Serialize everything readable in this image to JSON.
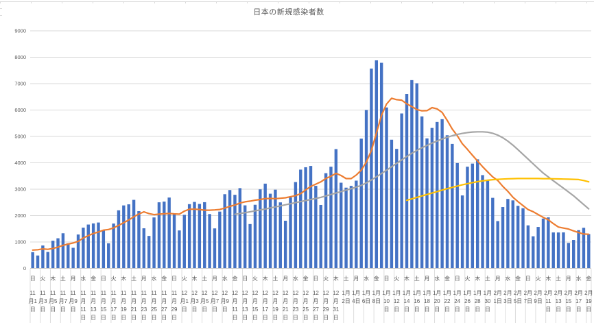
{
  "colors": {
    "bar": "#4472C4",
    "avg_line": "#ED7D31",
    "gray_line": "#A5A5A5",
    "yellow_line": "#FFC000",
    "grid": "#D9D9D9",
    "axis": "#C9C9C9",
    "separator": "#DCDCDC",
    "text": "#595959"
  },
  "chart_data": {
    "type": "bar",
    "title": "日本の新規感染者数",
    "xlabel": "",
    "ylabel": "",
    "ylim": [
      0,
      9000
    ],
    "yticks": [
      0,
      1000,
      2000,
      3000,
      4000,
      5000,
      6000,
      7000,
      8000,
      9000
    ],
    "grid": true,
    "legend": "none",
    "n_categories": 111,
    "x_label_interval": 2,
    "x_tick_labels": [
      {
        "w": "日",
        "lines": [
          "11",
          "月1",
          "日"
        ]
      },
      {
        "w": "火",
        "lines": [
          "11",
          "月3",
          "日"
        ]
      },
      {
        "w": "木",
        "lines": [
          "11",
          "月5",
          "日"
        ]
      },
      {
        "w": "土",
        "lines": [
          "11",
          "月7",
          "日"
        ]
      },
      {
        "w": "月",
        "lines": [
          "11",
          "月9",
          "日"
        ]
      },
      {
        "w": "水",
        "lines": [
          "11",
          "月",
          "11",
          "日"
        ]
      },
      {
        "w": "金",
        "lines": [
          "11",
          "月",
          "13",
          "日"
        ]
      },
      {
        "w": "日",
        "lines": [
          "11",
          "月",
          "15",
          "日"
        ]
      },
      {
        "w": "火",
        "lines": [
          "11",
          "月",
          "17",
          "日"
        ]
      },
      {
        "w": "木",
        "lines": [
          "11",
          "月",
          "19",
          "日"
        ]
      },
      {
        "w": "土",
        "lines": [
          "11",
          "月",
          "21",
          "日"
        ]
      },
      {
        "w": "月",
        "lines": [
          "11",
          "月",
          "23",
          "日"
        ]
      },
      {
        "w": "水",
        "lines": [
          "11",
          "月",
          "25",
          "日"
        ]
      },
      {
        "w": "金",
        "lines": [
          "11",
          "月",
          "27",
          "日"
        ]
      },
      {
        "w": "日",
        "lines": [
          "11",
          "月",
          "29",
          "日"
        ]
      },
      {
        "w": "火",
        "lines": [
          "12",
          "月1",
          "日"
        ]
      },
      {
        "w": "木",
        "lines": [
          "12",
          "月3",
          "日"
        ]
      },
      {
        "w": "土",
        "lines": [
          "12",
          "月5",
          "日"
        ]
      },
      {
        "w": "月",
        "lines": [
          "12",
          "月7",
          "日"
        ]
      },
      {
        "w": "水",
        "lines": [
          "12",
          "月9",
          "日"
        ]
      },
      {
        "w": "金",
        "lines": [
          "12",
          "月",
          "11",
          "日"
        ]
      },
      {
        "w": "日",
        "lines": [
          "12",
          "月",
          "13",
          "日"
        ]
      },
      {
        "w": "火",
        "lines": [
          "12",
          "月",
          "15",
          "日"
        ]
      },
      {
        "w": "木",
        "lines": [
          "12",
          "月",
          "17",
          "日"
        ]
      },
      {
        "w": "土",
        "lines": [
          "12",
          "月",
          "19",
          "日"
        ]
      },
      {
        "w": "月",
        "lines": [
          "12",
          "月",
          "21",
          "日"
        ]
      },
      {
        "w": "水",
        "lines": [
          "12",
          "月",
          "23",
          "日"
        ]
      },
      {
        "w": "金",
        "lines": [
          "12",
          "月",
          "25",
          "日"
        ]
      },
      {
        "w": "日",
        "lines": [
          "12",
          "月",
          "27",
          "日"
        ]
      },
      {
        "w": "火",
        "lines": [
          "12",
          "月",
          "29",
          "日"
        ]
      },
      {
        "w": "木",
        "lines": [
          "12",
          "月",
          "31",
          "日"
        ]
      },
      {
        "w": "土",
        "lines": [
          "1月",
          "2日"
        ]
      },
      {
        "w": "月",
        "lines": [
          "1月",
          "4日"
        ]
      },
      {
        "w": "水",
        "lines": [
          "1月",
          "6日"
        ]
      },
      {
        "w": "金",
        "lines": [
          "1月",
          "8日"
        ]
      },
      {
        "w": "日",
        "lines": [
          "1月",
          "10",
          "日"
        ]
      },
      {
        "w": "火",
        "lines": [
          "1月",
          "12",
          "日"
        ]
      },
      {
        "w": "木",
        "lines": [
          "1月",
          "14",
          "日"
        ]
      },
      {
        "w": "土",
        "lines": [
          "1月",
          "16",
          "日"
        ]
      },
      {
        "w": "月",
        "lines": [
          "1月",
          "18",
          "日"
        ]
      },
      {
        "w": "水",
        "lines": [
          "1月",
          "20",
          "日"
        ]
      },
      {
        "w": "金",
        "lines": [
          "1月",
          "22",
          "日"
        ]
      },
      {
        "w": "日",
        "lines": [
          "1月",
          "24",
          "日"
        ]
      },
      {
        "w": "火",
        "lines": [
          "1月",
          "26",
          "日"
        ]
      },
      {
        "w": "木",
        "lines": [
          "1月",
          "28",
          "日"
        ]
      },
      {
        "w": "土",
        "lines": [
          "1月",
          "30",
          "日"
        ]
      },
      {
        "w": "月",
        "lines": [
          "2月",
          "1日"
        ]
      },
      {
        "w": "水",
        "lines": [
          "2月",
          "3日"
        ]
      },
      {
        "w": "金",
        "lines": [
          "2月",
          "5日"
        ]
      },
      {
        "w": "日",
        "lines": [
          "2月",
          "7日"
        ]
      },
      {
        "w": "火",
        "lines": [
          "2月",
          "9日"
        ]
      },
      {
        "w": "木",
        "lines": [
          "2月",
          "11",
          "日"
        ]
      },
      {
        "w": "土",
        "lines": [
          "2月",
          "13",
          "日"
        ]
      },
      {
        "w": "月",
        "lines": [
          "2月",
          "15",
          "日"
        ]
      },
      {
        "w": "水",
        "lines": [
          "2月",
          "17",
          "日"
        ]
      },
      {
        "w": "金",
        "lines": [
          "2月",
          "19",
          "日"
        ]
      }
    ],
    "series": [
      {
        "name": "daily_new_cases",
        "type": "bar",
        "color": "#4472C4",
        "start_index": 0,
        "values": [
          614,
          488,
          867,
          623,
          1048,
          1141,
          1331,
          951,
          780,
          1284,
          1543,
          1661,
          1704,
          1738,
          1441,
          950,
          1699,
          2201,
          2386,
          2427,
          2596,
          2168,
          1520,
          1230,
          1930,
          2504,
          2531,
          2684,
          2066,
          1438,
          2030,
          2434,
          2518,
          2442,
          2508,
          2058,
          1515,
          2152,
          2811,
          2968,
          2788,
          3041,
          2388,
          1680,
          2410,
          2994,
          3211,
          2829,
          2982,
          2501,
          1806,
          2688,
          3271,
          3742,
          3832,
          3881,
          3127,
          2403,
          3607,
          3852,
          4520,
          3246,
          3059,
          3127,
          3325,
          4915,
          6001,
          7570,
          7882,
          7790,
          6097,
          4876,
          4527,
          5870,
          6610,
          7133,
          7014,
          5759,
          4925,
          5321,
          5549,
          5653,
          5045,
          4717,
          3990,
          2764,
          3853,
          3971,
          4133,
          3534,
          3344,
          2673,
          1792,
          2324,
          2631,
          2576,
          2372,
          2279,
          1630,
          1216,
          1570,
          1887,
          1933,
          1362,
          1361,
          1364,
          965,
          1077,
          1448,
          1538,
          1301
        ]
      },
      {
        "name": "seven_day_moving_average",
        "type": "line",
        "color": "#ED7D31",
        "start_index": 0,
        "values": [
          694,
          706,
          738,
          722,
          756,
          808,
          873,
          921,
          963,
          1023,
          1154,
          1242,
          1322,
          1380,
          1450,
          1474,
          1534,
          1628,
          1731,
          1835,
          1957,
          2061,
          2142,
          2075,
          2037,
          2054,
          2068,
          2081,
          2066,
          2055,
          2169,
          2241,
          2243,
          2230,
          2205,
          2204,
          2215,
          2232,
          2286,
          2351,
          2400,
          2476,
          2523,
          2547,
          2584,
          2610,
          2645,
          2650,
          2642,
          2658,
          2676,
          2716,
          2755,
          2831,
          2975,
          3103,
          3192,
          3278,
          3409,
          3492,
          3603,
          3519,
          3402,
          3402,
          3534,
          3721,
          4028,
          4463,
          5126,
          5801,
          6226,
          6447,
          6392,
          6373,
          6236,
          6129,
          6018,
          5970,
          5977,
          6090,
          6044,
          5908,
          5609,
          5281,
          5029,
          4720,
          4510,
          4285,
          4068,
          3852,
          3656,
          3467,
          3329,
          3110,
          2919,
          2696,
          2530,
          2378,
          2229,
          2147,
          2039,
          1933,
          1841,
          1697,
          1566,
          1528,
          1492,
          1421,
          1359,
          1302,
          1293
        ]
      },
      {
        "name": "gray_trend_line",
        "type": "line",
        "color": "#A5A5A5",
        "start_index": 40,
        "values": [
          2050,
          2080,
          2110,
          2145,
          2180,
          2215,
          2250,
          2290,
          2330,
          2370,
          2410,
          2450,
          2490,
          2530,
          2570,
          2610,
          2650,
          2690,
          2745,
          2800,
          2855,
          2910,
          2965,
          3020,
          3080,
          3145,
          3240,
          3350,
          3470,
          3595,
          3720,
          3850,
          3980,
          4110,
          4240,
          4360,
          4470,
          4570,
          4660,
          4745,
          4825,
          4900,
          4965,
          5025,
          5075,
          5115,
          5145,
          5165,
          5175,
          5175,
          5160,
          5120,
          5050,
          4950,
          4820,
          4670,
          4500,
          4320,
          4140,
          3960,
          3785,
          3610,
          3465,
          3320,
          3180,
          3040,
          2895,
          2750,
          2585,
          2420,
          2255
        ]
      },
      {
        "name": "yellow_trend_line",
        "type": "line",
        "color": "#FFC000",
        "start_index": 74,
        "values": [
          2580,
          2635,
          2690,
          2745,
          2800,
          2855,
          2910,
          2965,
          3020,
          3070,
          3120,
          3165,
          3210,
          3250,
          3285,
          3315,
          3340,
          3360,
          3375,
          3385,
          3395,
          3400,
          3405,
          3405,
          3405,
          3405,
          3405,
          3400,
          3400,
          3395,
          3390,
          3385,
          3380,
          3375,
          3365,
          3330,
          3280
        ]
      }
    ]
  }
}
